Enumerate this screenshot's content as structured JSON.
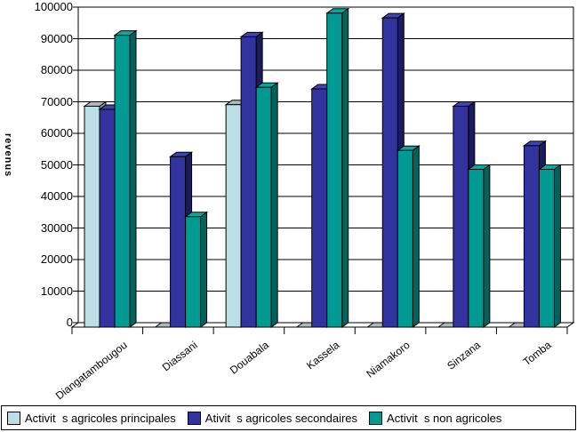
{
  "chart_data": {
    "type": "bar",
    "style": "3d-column",
    "title": "",
    "xlabel": "",
    "ylabel": "revenus",
    "ylim": [
      0,
      100000
    ],
    "ytick_step": 10000,
    "ytick_labels": [
      "0",
      "10000",
      "20000",
      "30000",
      "40000",
      "50000",
      "60000",
      "70000",
      "80000",
      "90000",
      "100000"
    ],
    "grid": true,
    "legend_position": "bottom",
    "categories": [
      "Diangatambougou",
      "Diassani",
      "Douabala",
      "Kassela",
      "Niamakoro",
      "Sinzana",
      "Tomba"
    ],
    "series": [
      {
        "name": "Activit  s agricoles principales",
        "values": [
          70000,
          0,
          70500,
          0,
          0,
          0,
          0
        ],
        "color_front": "#bcdfe5",
        "color_top": "#aeb9bb",
        "color_side": "#7fa3ab"
      },
      {
        "name": "Ativit  s agricoles secondaires",
        "values": [
          69000,
          54000,
          92000,
          75500,
          98000,
          70000,
          57500
        ],
        "color_front": "#3333a0",
        "color_top": "#4343ae",
        "color_side": "#1b1b5f"
      },
      {
        "name": "Activit  s non agricoles",
        "values": [
          92500,
          35000,
          76000,
          99500,
          56000,
          50000,
          50000
        ],
        "color_front": "#009a92",
        "color_top": "#00aca2",
        "color_side": "#00635d"
      }
    ]
  }
}
